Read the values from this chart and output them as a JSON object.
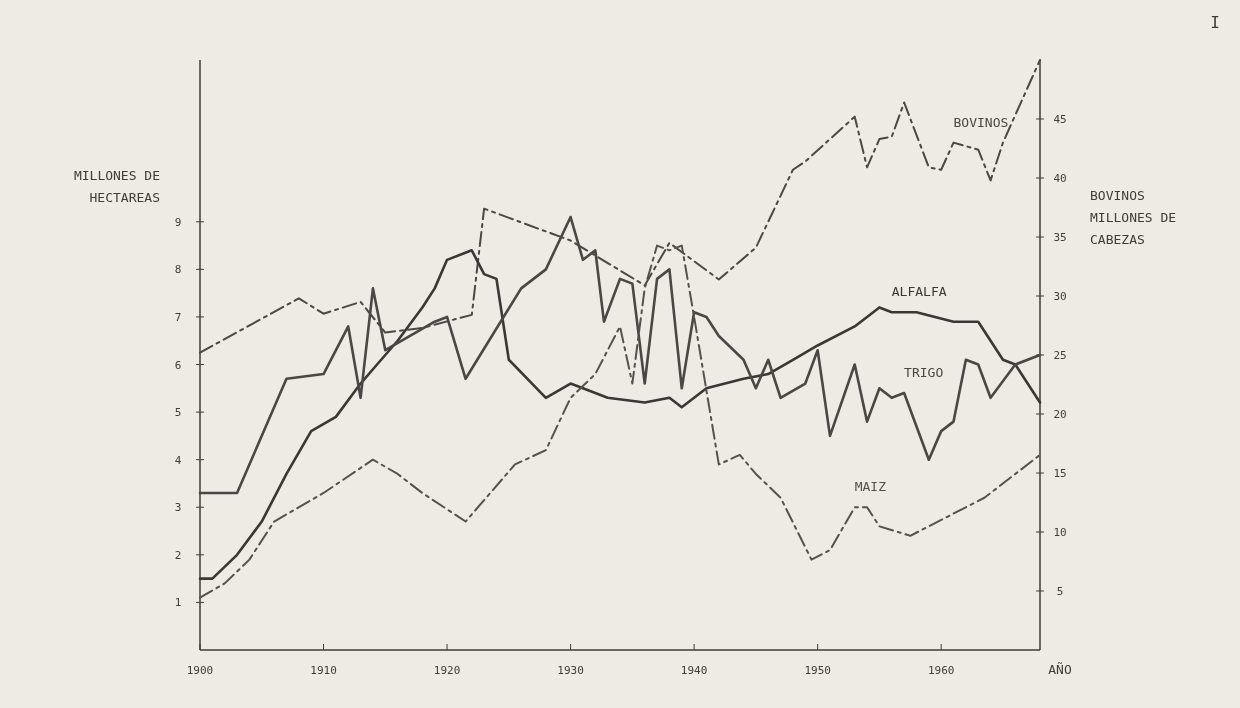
{
  "chart_data": {
    "type": "line",
    "xlabel": "AÑO",
    "ylabel": "MILLONES DE HECTAREAS",
    "y2label": "BOVINOS MILLONES DE CABEZAS",
    "annotations": [
      "I"
    ],
    "xlim": [
      1900,
      1968
    ],
    "xticks": [
      1900,
      1910,
      1920,
      1930,
      1940,
      1950,
      1960
    ],
    "ylim": [
      0,
      12.4
    ],
    "yticks": [
      1,
      2,
      3,
      4,
      5,
      6,
      7,
      8,
      9
    ],
    "y2lim": [
      0,
      50
    ],
    "y2ticks": [
      5,
      10,
      15,
      20,
      25,
      30,
      35,
      40,
      45
    ],
    "grid": false,
    "marker": "none",
    "series": [
      {
        "name": "BOVINOS",
        "color": "#4a4744",
        "axis": "y2",
        "line_style": "dashed",
        "x": [
          1900,
          1908,
          1910,
          1913,
          1915,
          1918,
          1922,
          1923,
          1930,
          1936,
          1938,
          1942,
          1945,
          1948,
          1949,
          1953,
          1954,
          1955,
          1956,
          1957,
          1959,
          1960,
          1961,
          1963,
          1964,
          1965,
          1968
        ],
        "values": [
          25.2,
          29.8,
          28.5,
          29.5,
          26.9,
          27.3,
          28.4,
          37.4,
          34.7,
          30.9,
          34.5,
          31.4,
          34.1,
          40.7,
          41.4,
          45.2,
          40.9,
          43.3,
          43.5,
          46.4,
          40.9,
          40.7,
          43.0,
          42.4,
          39.8,
          43.0,
          50.0
        ]
      },
      {
        "name": "ALFALFA",
        "color": "#3a3735",
        "line_style": "solid",
        "x": [
          1900,
          1901,
          1903,
          1905,
          1907,
          1909,
          1911,
          1913,
          1914,
          1916,
          1918,
          1919,
          1920,
          1922,
          1923,
          1924,
          1925,
          1928,
          1930,
          1933,
          1936,
          1938,
          1939,
          1941,
          1944,
          1946,
          1948,
          1950,
          1953,
          1955,
          1956,
          1958,
          1961,
          1963,
          1965,
          1966,
          1968
        ],
        "values": [
          1.5,
          1.5,
          2.0,
          2.7,
          3.7,
          4.6,
          4.9,
          5.6,
          5.9,
          6.5,
          7.2,
          7.6,
          8.2,
          8.4,
          7.9,
          7.8,
          6.1,
          5.3,
          5.6,
          5.3,
          5.2,
          5.3,
          5.1,
          5.5,
          5.7,
          5.8,
          6.1,
          6.4,
          6.8,
          7.2,
          7.1,
          7.1,
          6.9,
          6.9,
          6.1,
          6.0,
          5.2
        ]
      },
      {
        "name": "TRIGO",
        "color": "#4a4744",
        "line_style": "solid",
        "x": [
          1900,
          1903,
          1907,
          1910,
          1912,
          1913,
          1914,
          1915,
          1917,
          1919,
          1920,
          1921.5,
          1926,
          1928,
          1930,
          1931,
          1932,
          1932.7,
          1934,
          1935,
          1936,
          1937,
          1938,
          1939,
          1940,
          1941,
          1942,
          1944,
          1945,
          1946,
          1947,
          1949,
          1950,
          1951,
          1953,
          1954,
          1955,
          1956,
          1957,
          1959,
          1960,
          1961,
          1962,
          1963,
          1964,
          1966,
          1968
        ],
        "values": [
          3.3,
          3.3,
          5.7,
          5.8,
          6.8,
          5.3,
          7.6,
          6.3,
          6.6,
          6.9,
          7.0,
          5.7,
          7.6,
          8.0,
          9.1,
          8.2,
          8.4,
          6.9,
          7.8,
          7.7,
          5.6,
          7.8,
          8.0,
          5.5,
          7.1,
          7.0,
          6.6,
          6.1,
          5.5,
          6.1,
          5.3,
          5.6,
          6.3,
          4.5,
          6.0,
          4.8,
          5.5,
          5.3,
          5.4,
          4.0,
          4.6,
          4.8,
          6.1,
          6.0,
          5.3,
          6.0,
          6.2
        ]
      },
      {
        "name": "MAIZ",
        "color": "#55524e",
        "line_style": "dashed",
        "x": [
          1900,
          1902,
          1904,
          1905,
          1906,
          1910,
          1914,
          1916,
          1918,
          1921.5,
          1925.5,
          1928,
          1930,
          1932,
          1934,
          1935,
          1936,
          1937,
          1938,
          1939,
          1940,
          1942,
          1943.7,
          1945,
          1947,
          1949.5,
          1951,
          1953,
          1954,
          1955,
          1957.5,
          1960.5,
          1963.5,
          1968
        ],
        "values": [
          1.1,
          1.4,
          1.9,
          2.3,
          2.7,
          3.3,
          4.0,
          3.7,
          3.3,
          2.7,
          3.9,
          4.2,
          5.3,
          5.8,
          6.8,
          5.6,
          7.6,
          8.5,
          8.4,
          8.5,
          7.0,
          3.9,
          4.1,
          3.7,
          3.2,
          1.9,
          2.1,
          3.0,
          3.0,
          2.6,
          2.4,
          2.8,
          3.2,
          4.1
        ]
      }
    ]
  }
}
